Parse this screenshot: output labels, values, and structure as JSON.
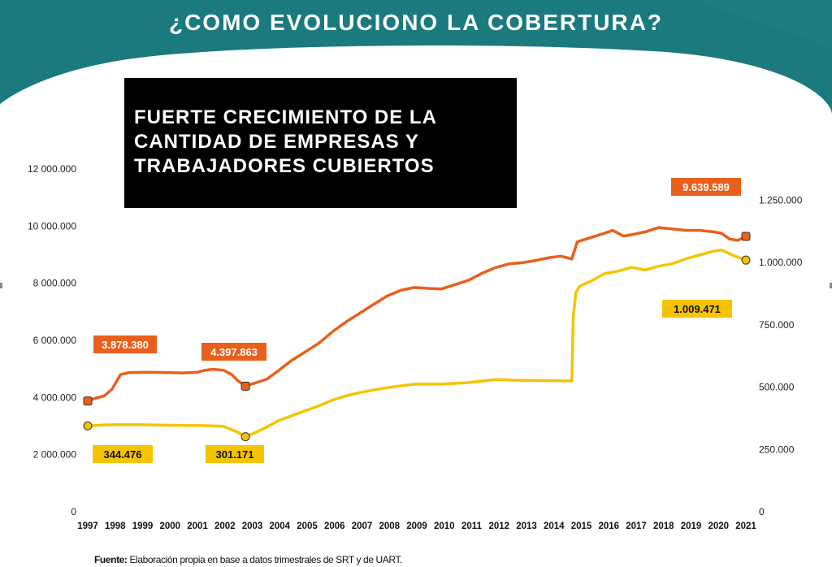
{
  "header": {
    "title": "¿COMO EVOLUCIONO LA COBERTURA?"
  },
  "headline": {
    "lines": [
      "FUERTE CRECIMIENTO DE LA",
      "CANTIDAD DE EMPRESAS Y",
      "TRABAJADORES CUBIERTOS"
    ]
  },
  "footnote": {
    "label": "Fuente:",
    "text": " Elaboración propia en base a datos trimestrales de SRT y de UART."
  },
  "colors": {
    "banner": "#1a7a7e",
    "workers": "#e8601c",
    "companies": "#f5c400",
    "tag_workers_bg": "#e8601c",
    "tag_companies_bg": "#f5c400"
  },
  "chart_data": {
    "type": "line",
    "title": "",
    "xlabel": "",
    "ylabel": "",
    "legend": "none",
    "grid": false,
    "x_ticks": [
      "1997",
      "1998",
      "1999",
      "2000",
      "2001",
      "2002",
      "2003",
      "2004",
      "2005",
      "2006",
      "2007",
      "2008",
      "2009",
      "2010",
      "2011",
      "2012",
      "2013",
      "2014",
      "2015",
      "2016",
      "2017",
      "2018",
      "2019",
      "2020",
      "2021"
    ],
    "y_left": {
      "ylim": [
        0,
        12000000
      ],
      "ticks": [
        0,
        2000000,
        4000000,
        6000000,
        8000000,
        10000000,
        12000000
      ],
      "tick_labels": [
        "0",
        "2 000.000",
        "4 000.000",
        "6 000.000",
        "8 000.000",
        "10 000.000",
        "12 000.000"
      ]
    },
    "y_right": {
      "ylim": [
        0,
        1375000
      ],
      "ticks": [
        0,
        250000,
        500000,
        750000,
        1000000,
        1250000
      ],
      "tick_labels": [
        "0",
        "250.000",
        "500.000",
        "750.000",
        "1.000.000",
        "1.250.000"
      ]
    },
    "series": [
      {
        "axis": "left",
        "x": [
          1997.0,
          1997.3,
          1997.6,
          1997.9,
          1998.2,
          1998.5,
          1999.0,
          1999.5,
          2000.0,
          2000.5,
          2001.0,
          2001.3,
          2001.6,
          2002.0,
          2002.3,
          2002.5,
          2002.8,
          2003.2,
          2003.6,
          2004.0,
          2004.5,
          2005.0,
          2005.5,
          2006.0,
          2006.5,
          2007.0,
          2007.5,
          2008.0,
          2008.5,
          2009.0,
          2009.5,
          2010.0,
          2010.5,
          2011.0,
          2011.5,
          2012.0,
          2012.5,
          2013.0,
          2013.5,
          2014.0,
          2014.4,
          2014.8,
          2015.0,
          2015.5,
          2016.0,
          2016.3,
          2016.7,
          2017.0,
          2017.5,
          2018.0,
          2018.5,
          2019.0,
          2019.5,
          2020.0,
          2020.3,
          2020.6,
          2020.9,
          2021.2
        ],
        "values": [
          3878380,
          3980000,
          4050000,
          4300000,
          4800000,
          4870000,
          4880000,
          4880000,
          4870000,
          4860000,
          4880000,
          4950000,
          4990000,
          4950000,
          4800000,
          4600000,
          4397863,
          4520000,
          4650000,
          4930000,
          5300000,
          5600000,
          5900000,
          6300000,
          6650000,
          6950000,
          7250000,
          7550000,
          7750000,
          7850000,
          7820000,
          7800000,
          7950000,
          8100000,
          8350000,
          8550000,
          8680000,
          8720000,
          8800000,
          8900000,
          8950000,
          8850000,
          9450000,
          9600000,
          9750000,
          9850000,
          9650000,
          9700000,
          9800000,
          9950000,
          9900000,
          9850000,
          9850000,
          9800000,
          9750000,
          9550000,
          9500000,
          9639589
        ]
      },
      {
        "axis": "right",
        "x": [
          1997.0,
          1997.5,
          1998.0,
          1999.0,
          2000.0,
          2001.0,
          2001.5,
          2002.0,
          2002.5,
          2002.8,
          2003.0,
          2003.5,
          2004.0,
          2004.5,
          2005.0,
          2005.5,
          2006.0,
          2006.5,
          2007.0,
          2007.5,
          2008.0,
          2008.5,
          2009.0,
          2010.0,
          2011.0,
          2012.0,
          2013.0,
          2014.0,
          2014.8,
          2014.85,
          2014.95,
          2015.1,
          2015.5,
          2016.0,
          2016.5,
          2017.0,
          2017.5,
          2018.0,
          2018.5,
          2019.0,
          2019.5,
          2020.0,
          2020.3,
          2020.7,
          2021.2
        ],
        "values": [
          344476,
          348000,
          349000,
          349000,
          347000,
          346000,
          345000,
          342000,
          320000,
          301171,
          310000,
          335000,
          365000,
          385000,
          405000,
          425000,
          448000,
          465000,
          478000,
          488000,
          498000,
          505000,
          512000,
          512000,
          518000,
          530000,
          527000,
          526000,
          525000,
          780000,
          880000,
          905000,
          925000,
          955000,
          965000,
          980000,
          970000,
          985000,
          995000,
          1015000,
          1030000,
          1045000,
          1050000,
          1030000,
          1009471
        ]
      }
    ],
    "markers": [
      {
        "axis": "left",
        "x": 1997.0,
        "value": 3878380
      },
      {
        "axis": "left",
        "x": 2002.8,
        "value": 4397863
      },
      {
        "axis": "left",
        "x": 2021.2,
        "value": 9639589
      },
      {
        "axis": "right",
        "x": 1997.0,
        "value": 344476
      },
      {
        "axis": "right",
        "x": 2002.8,
        "value": 301171
      },
      {
        "axis": "right",
        "x": 2021.2,
        "value": 1009471
      }
    ],
    "annotations": [
      {
        "text": "3.878.380",
        "series": "workers"
      },
      {
        "text": "4.397.863",
        "series": "workers"
      },
      {
        "text": "9.639.589",
        "series": "workers"
      },
      {
        "text": "344.476",
        "series": "companies"
      },
      {
        "text": "301.171",
        "series": "companies"
      },
      {
        "text": "1.009.471",
        "series": "companies"
      }
    ]
  }
}
